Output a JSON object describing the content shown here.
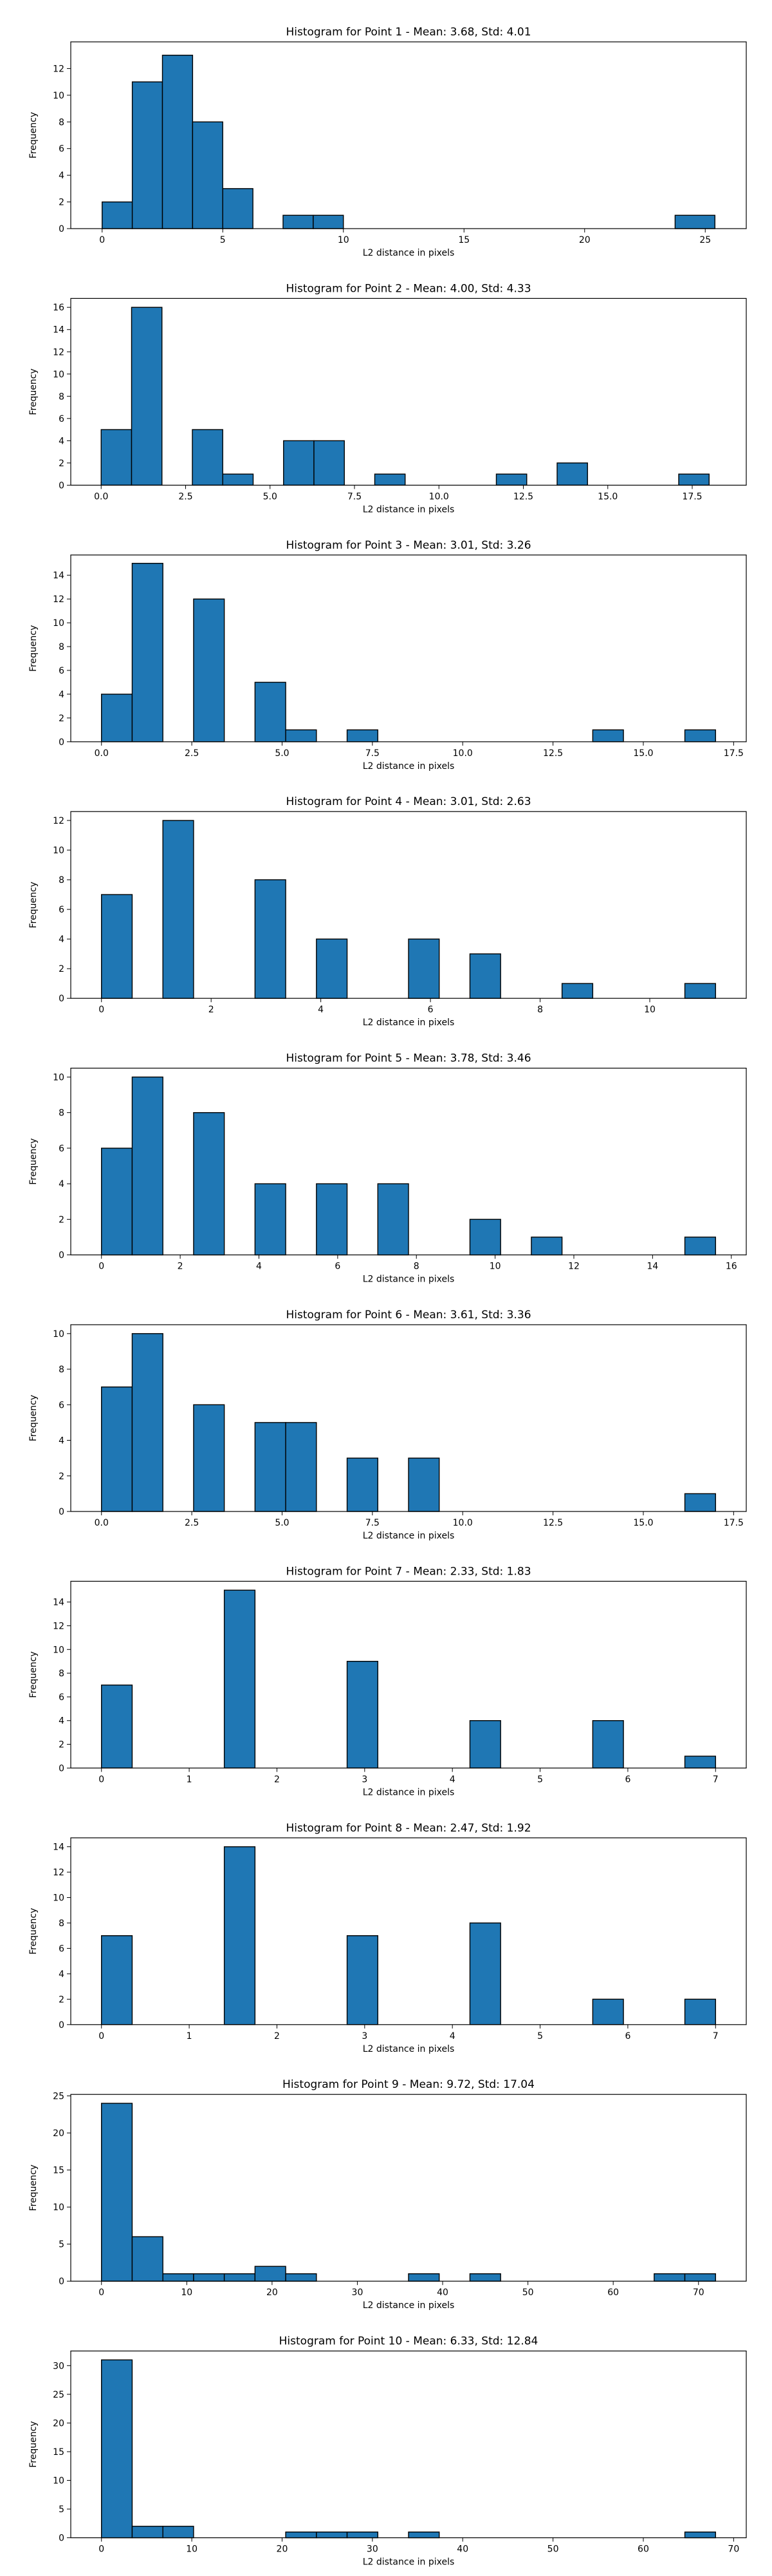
{
  "chart_data": [
    {
      "type": "bar",
      "title": "Histogram for Point 1 - Mean: 3.68, Std: 4.01",
      "xlabel": "L2 distance in pixels",
      "ylabel": "Frequency",
      "xlim": [
        -1.3,
        26.7
      ],
      "ylim": [
        0,
        14
      ],
      "xticks": [
        0,
        5,
        10,
        15,
        20,
        25
      ],
      "xtick_labels": [
        "0",
        "5",
        "10",
        "15",
        "20",
        "25"
      ],
      "yticks": [
        0,
        2,
        4,
        6,
        8,
        10,
        12
      ],
      "bin_edges": [
        0,
        1.25,
        2.5,
        3.75,
        5,
        6.25,
        7.5,
        8.75,
        10,
        11.25,
        12.5,
        13.75,
        15,
        16.25,
        17.5,
        18.75,
        20,
        21.25,
        22.5,
        23.75,
        25.4
      ],
      "values": [
        2,
        11,
        13,
        8,
        3,
        0,
        1,
        1,
        0,
        0,
        0,
        0,
        0,
        0,
        0,
        0,
        0,
        0,
        0,
        1
      ]
    },
    {
      "type": "bar",
      "title": "Histogram for Point 2 - Mean: 4.00, Std: 4.33",
      "xlabel": "L2 distance in pixels",
      "ylabel": "Frequency",
      "xlim": [
        -0.9,
        19.1
      ],
      "ylim": [
        0,
        16.8
      ],
      "xticks": [
        0,
        2.5,
        5,
        7.5,
        10,
        12.5,
        15,
        17.5
      ],
      "xtick_labels": [
        "0.0",
        "2.5",
        "5.0",
        "7.5",
        "10.0",
        "12.5",
        "15.0",
        "17.5"
      ],
      "yticks": [
        0,
        2,
        4,
        6,
        8,
        10,
        12,
        14,
        16
      ],
      "bin_edges": [
        0,
        0.9,
        1.8,
        2.7,
        3.6,
        4.5,
        5.4,
        6.3,
        7.2,
        8.1,
        9.0,
        9.9,
        10.8,
        11.7,
        12.6,
        13.5,
        14.4,
        15.3,
        16.2,
        17.1,
        18.0
      ],
      "values": [
        5,
        16,
        0,
        5,
        1,
        0,
        4,
        4,
        0,
        1,
        0,
        0,
        0,
        1,
        0,
        2,
        0,
        0,
        0,
        1
      ]
    },
    {
      "type": "bar",
      "title": "Histogram for Point 3 - Mean: 3.01, Std: 3.26",
      "xlabel": "L2 distance in pixels",
      "ylabel": "Frequency",
      "xlim": [
        -0.85,
        17.85
      ],
      "ylim": [
        0,
        15.7
      ],
      "xticks": [
        0,
        2.5,
        5,
        7.5,
        10,
        12.5,
        15,
        17.5
      ],
      "xtick_labels": [
        "0.0",
        "2.5",
        "5.0",
        "7.5",
        "10.0",
        "12.5",
        "15.0",
        "17.5"
      ],
      "yticks": [
        0,
        2,
        4,
        6,
        8,
        10,
        12,
        14
      ],
      "bin_edges": [
        0,
        0.85,
        1.7,
        2.55,
        3.4,
        4.25,
        5.1,
        5.95,
        6.8,
        7.65,
        8.5,
        9.35,
        10.2,
        11.05,
        11.9,
        12.75,
        13.6,
        14.45,
        15.3,
        16.15,
        17.0
      ],
      "values": [
        4,
        15,
        0,
        12,
        0,
        5,
        1,
        0,
        1,
        0,
        0,
        0,
        0,
        0,
        0,
        0,
        1,
        0,
        0,
        1
      ]
    },
    {
      "type": "bar",
      "title": "Histogram for Point 4 - Mean: 3.01, Std: 2.63",
      "xlabel": "L2 distance in pixels",
      "ylabel": "Frequency",
      "xlim": [
        -0.56,
        11.76
      ],
      "ylim": [
        0,
        12.6
      ],
      "xticks": [
        0,
        2,
        4,
        6,
        8,
        10
      ],
      "xtick_labels": [
        "0",
        "2",
        "4",
        "6",
        "8",
        "10"
      ],
      "yticks": [
        0,
        2,
        4,
        6,
        8,
        10,
        12
      ],
      "bin_edges": [
        0,
        0.56,
        1.12,
        1.68,
        2.24,
        2.8,
        3.36,
        3.92,
        4.48,
        5.04,
        5.6,
        6.16,
        6.72,
        7.28,
        7.84,
        8.4,
        8.96,
        9.52,
        10.08,
        10.64,
        11.2
      ],
      "values": [
        7,
        0,
        12,
        0,
        0,
        8,
        0,
        4,
        0,
        0,
        4,
        0,
        3,
        0,
        0,
        1,
        0,
        0,
        0,
        1
      ]
    },
    {
      "type": "bar",
      "title": "Histogram for Point 5 - Mean: 3.78, Std: 3.46",
      "xlabel": "L2 distance in pixels",
      "ylabel": "Frequency",
      "xlim": [
        -0.78,
        16.38
      ],
      "ylim": [
        0,
        10.5
      ],
      "xticks": [
        0,
        2,
        4,
        6,
        8,
        10,
        12,
        14,
        16
      ],
      "xtick_labels": [
        "0",
        "2",
        "4",
        "6",
        "8",
        "10",
        "12",
        "14",
        "16"
      ],
      "yticks": [
        0,
        2,
        4,
        6,
        8,
        10
      ],
      "bin_edges": [
        0,
        0.78,
        1.56,
        2.34,
        3.12,
        3.9,
        4.68,
        5.46,
        6.24,
        7.02,
        7.8,
        8.58,
        9.36,
        10.14,
        10.92,
        11.7,
        12.48,
        13.26,
        14.04,
        14.82,
        15.6
      ],
      "values": [
        6,
        10,
        0,
        8,
        0,
        4,
        0,
        4,
        0,
        4,
        0,
        0,
        2,
        0,
        1,
        0,
        0,
        0,
        0,
        1
      ]
    },
    {
      "type": "bar",
      "title": "Histogram for Point 6 - Mean: 3.61, Std: 3.36",
      "xlabel": "L2 distance in pixels",
      "ylabel": "Frequency",
      "xlim": [
        -0.85,
        17.85
      ],
      "ylim": [
        0,
        10.5
      ],
      "xticks": [
        0,
        2.5,
        5,
        7.5,
        10,
        12.5,
        15,
        17.5
      ],
      "xtick_labels": [
        "0.0",
        "2.5",
        "5.0",
        "7.5",
        "10.0",
        "12.5",
        "15.0",
        "17.5"
      ],
      "yticks": [
        0,
        2,
        4,
        6,
        8,
        10
      ],
      "bin_edges": [
        0,
        0.85,
        1.7,
        2.55,
        3.4,
        4.25,
        5.1,
        5.95,
        6.8,
        7.65,
        8.5,
        9.35,
        10.2,
        11.05,
        11.9,
        12.75,
        13.6,
        14.45,
        15.3,
        16.15,
        17.0
      ],
      "values": [
        7,
        10,
        0,
        6,
        0,
        5,
        5,
        0,
        3,
        0,
        3,
        0,
        0,
        0,
        0,
        0,
        0,
        0,
        0,
        1
      ]
    },
    {
      "type": "bar",
      "title": "Histogram for Point 7 - Mean: 2.33, Std: 1.83",
      "xlabel": "L2 distance in pixels",
      "ylabel": "Frequency",
      "xlim": [
        -0.35,
        7.35
      ],
      "ylim": [
        0,
        15.75
      ],
      "xticks": [
        0,
        1,
        2,
        3,
        4,
        5,
        6,
        7
      ],
      "xtick_labels": [
        "0",
        "1",
        "2",
        "3",
        "4",
        "5",
        "6",
        "7"
      ],
      "yticks": [
        0,
        2,
        4,
        6,
        8,
        10,
        12,
        14
      ],
      "bin_edges": [
        0,
        0.35,
        0.7,
        1.05,
        1.4,
        1.75,
        2.1,
        2.45,
        2.8,
        3.15,
        3.5,
        3.85,
        4.2,
        4.55,
        4.9,
        5.25,
        5.6,
        5.95,
        6.3,
        6.65,
        7.0
      ],
      "values": [
        7,
        0,
        0,
        0,
        15,
        0,
        0,
        0,
        9,
        0,
        0,
        0,
        4,
        0,
        0,
        0,
        4,
        0,
        0,
        1
      ]
    },
    {
      "type": "bar",
      "title": "Histogram for Point 8 - Mean: 2.47, Std: 1.92",
      "xlabel": "L2 distance in pixels",
      "ylabel": "Frequency",
      "xlim": [
        -0.35,
        7.35
      ],
      "ylim": [
        0,
        14.7
      ],
      "xticks": [
        0,
        1,
        2,
        3,
        4,
        5,
        6,
        7
      ],
      "xtick_labels": [
        "0",
        "1",
        "2",
        "3",
        "4",
        "5",
        "6",
        "7"
      ],
      "yticks": [
        0,
        2,
        4,
        6,
        8,
        10,
        12,
        14
      ],
      "bin_edges": [
        0,
        0.35,
        0.7,
        1.05,
        1.4,
        1.75,
        2.1,
        2.45,
        2.8,
        3.15,
        3.5,
        3.85,
        4.2,
        4.55,
        4.9,
        5.25,
        5.6,
        5.95,
        6.3,
        6.65,
        7.0
      ],
      "values": [
        7,
        0,
        0,
        0,
        14,
        0,
        0,
        0,
        7,
        0,
        0,
        0,
        8,
        0,
        0,
        0,
        2,
        0,
        0,
        2
      ]
    },
    {
      "type": "bar",
      "title": "Histogram for Point 9 - Mean: 9.72, Std: 17.04",
      "xlabel": "L2 distance in pixels",
      "ylabel": "Frequency",
      "xlim": [
        -3.6,
        75.6
      ],
      "ylim": [
        0,
        25.2
      ],
      "xticks": [
        0,
        10,
        20,
        30,
        40,
        50,
        60,
        70
      ],
      "xtick_labels": [
        "0",
        "10",
        "20",
        "30",
        "40",
        "50",
        "60",
        "70"
      ],
      "yticks": [
        0,
        5,
        10,
        15,
        20,
        25
      ],
      "bin_edges": [
        0,
        3.6,
        7.2,
        10.8,
        14.4,
        18.0,
        21.6,
        25.2,
        28.8,
        32.4,
        36.0,
        39.6,
        43.2,
        46.8,
        50.4,
        54.0,
        57.6,
        61.2,
        64.8,
        68.4,
        72.0
      ],
      "values": [
        24,
        6,
        1,
        1,
        1,
        2,
        1,
        0,
        0,
        0,
        1,
        0,
        1,
        0,
        0,
        0,
        0,
        0,
        1,
        1
      ]
    },
    {
      "type": "bar",
      "title": "Histogram for Point 10 - Mean: 6.33, Std: 12.84",
      "xlabel": "L2 distance in pixels",
      "ylabel": "Frequency",
      "xlim": [
        -3.4,
        71.4
      ],
      "ylim": [
        0,
        32.55
      ],
      "xticks": [
        0,
        10,
        20,
        30,
        40,
        50,
        60,
        70
      ],
      "xtick_labels": [
        "0",
        "10",
        "20",
        "30",
        "40",
        "50",
        "60",
        "70"
      ],
      "yticks": [
        0,
        5,
        10,
        15,
        20,
        25,
        30
      ],
      "bin_edges": [
        0,
        3.4,
        6.8,
        10.2,
        13.6,
        17.0,
        20.4,
        23.8,
        27.2,
        30.6,
        34.0,
        37.4,
        40.8,
        44.2,
        47.6,
        51.0,
        54.4,
        57.8,
        61.2,
        64.6,
        68.0
      ],
      "values": [
        31,
        2,
        2,
        0,
        0,
        0,
        1,
        1,
        1,
        0,
        1,
        0,
        0,
        0,
        0,
        0,
        0,
        0,
        0,
        1
      ]
    }
  ],
  "colors": {
    "bar_fill": "#1f77b4",
    "bar_edge": "#000000",
    "axes": "#000000"
  }
}
